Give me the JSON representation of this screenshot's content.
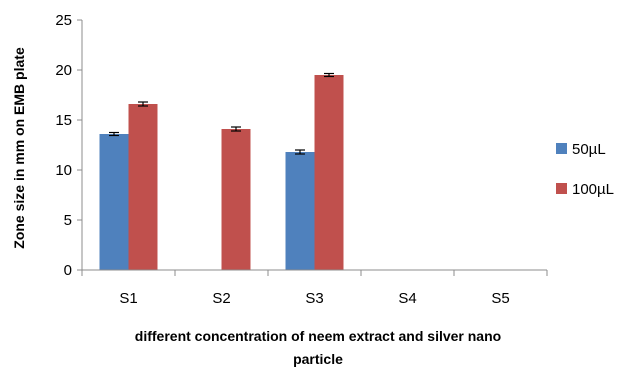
{
  "chart_data": {
    "type": "bar",
    "categories": [
      "S1",
      "S2",
      "S3",
      "S4",
      "S5"
    ],
    "series": [
      {
        "name": "50µL",
        "color": "#4F81BD",
        "values": [
          13.6,
          null,
          11.8,
          null,
          null
        ],
        "errors": [
          0.15,
          null,
          0.2,
          null,
          null
        ]
      },
      {
        "name": "100µL",
        "color": "#C0504D",
        "values": [
          16.6,
          14.1,
          19.5,
          null,
          null
        ],
        "errors": [
          0.2,
          0.2,
          0.15,
          null,
          null
        ]
      }
    ],
    "xlabel_lines": [
      "different concentration of neem  extract and silver nano",
      "particle"
    ],
    "ylabel": "Zone size in mm on EMB plate",
    "ylim": [
      0,
      25
    ],
    "yticks": [
      "0",
      "5",
      "10",
      "15",
      "20",
      "25"
    ],
    "grid": false,
    "legend_position": "right"
  }
}
